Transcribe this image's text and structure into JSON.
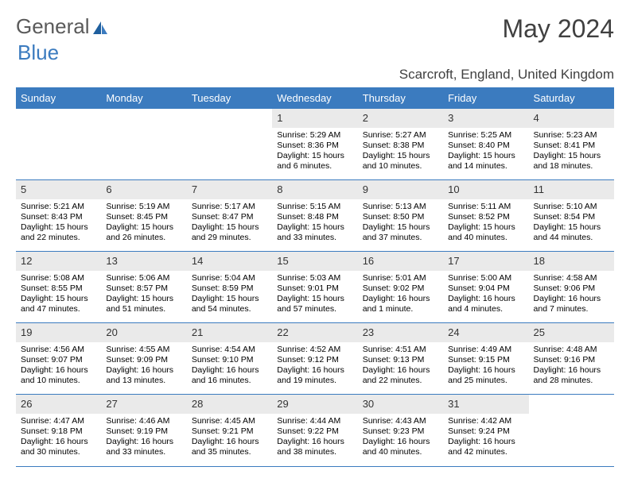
{
  "logo": {
    "text1": "General",
    "text2": "Blue"
  },
  "title": "May 2024",
  "subtitle": "Scarcroft, England, United Kingdom",
  "brand_color": "#3b7bbf",
  "header_bg": "#3b7bbf",
  "header_text_color": "#ffffff",
  "daynum_bg": "#eaeaea",
  "day_headers": [
    "Sunday",
    "Monday",
    "Tuesday",
    "Wednesday",
    "Thursday",
    "Friday",
    "Saturday"
  ],
  "weeks": [
    [
      null,
      null,
      null,
      {
        "n": "1",
        "sr": "5:29 AM",
        "ss": "8:36 PM",
        "dl": "15 hours and 6 minutes."
      },
      {
        "n": "2",
        "sr": "5:27 AM",
        "ss": "8:38 PM",
        "dl": "15 hours and 10 minutes."
      },
      {
        "n": "3",
        "sr": "5:25 AM",
        "ss": "8:40 PM",
        "dl": "15 hours and 14 minutes."
      },
      {
        "n": "4",
        "sr": "5:23 AM",
        "ss": "8:41 PM",
        "dl": "15 hours and 18 minutes."
      }
    ],
    [
      {
        "n": "5",
        "sr": "5:21 AM",
        "ss": "8:43 PM",
        "dl": "15 hours and 22 minutes."
      },
      {
        "n": "6",
        "sr": "5:19 AM",
        "ss": "8:45 PM",
        "dl": "15 hours and 26 minutes."
      },
      {
        "n": "7",
        "sr": "5:17 AM",
        "ss": "8:47 PM",
        "dl": "15 hours and 29 minutes."
      },
      {
        "n": "8",
        "sr": "5:15 AM",
        "ss": "8:48 PM",
        "dl": "15 hours and 33 minutes."
      },
      {
        "n": "9",
        "sr": "5:13 AM",
        "ss": "8:50 PM",
        "dl": "15 hours and 37 minutes."
      },
      {
        "n": "10",
        "sr": "5:11 AM",
        "ss": "8:52 PM",
        "dl": "15 hours and 40 minutes."
      },
      {
        "n": "11",
        "sr": "5:10 AM",
        "ss": "8:54 PM",
        "dl": "15 hours and 44 minutes."
      }
    ],
    [
      {
        "n": "12",
        "sr": "5:08 AM",
        "ss": "8:55 PM",
        "dl": "15 hours and 47 minutes."
      },
      {
        "n": "13",
        "sr": "5:06 AM",
        "ss": "8:57 PM",
        "dl": "15 hours and 51 minutes."
      },
      {
        "n": "14",
        "sr": "5:04 AM",
        "ss": "8:59 PM",
        "dl": "15 hours and 54 minutes."
      },
      {
        "n": "15",
        "sr": "5:03 AM",
        "ss": "9:01 PM",
        "dl": "15 hours and 57 minutes."
      },
      {
        "n": "16",
        "sr": "5:01 AM",
        "ss": "9:02 PM",
        "dl": "16 hours and 1 minute."
      },
      {
        "n": "17",
        "sr": "5:00 AM",
        "ss": "9:04 PM",
        "dl": "16 hours and 4 minutes."
      },
      {
        "n": "18",
        "sr": "4:58 AM",
        "ss": "9:06 PM",
        "dl": "16 hours and 7 minutes."
      }
    ],
    [
      {
        "n": "19",
        "sr": "4:56 AM",
        "ss": "9:07 PM",
        "dl": "16 hours and 10 minutes."
      },
      {
        "n": "20",
        "sr": "4:55 AM",
        "ss": "9:09 PM",
        "dl": "16 hours and 13 minutes."
      },
      {
        "n": "21",
        "sr": "4:54 AM",
        "ss": "9:10 PM",
        "dl": "16 hours and 16 minutes."
      },
      {
        "n": "22",
        "sr": "4:52 AM",
        "ss": "9:12 PM",
        "dl": "16 hours and 19 minutes."
      },
      {
        "n": "23",
        "sr": "4:51 AM",
        "ss": "9:13 PM",
        "dl": "16 hours and 22 minutes."
      },
      {
        "n": "24",
        "sr": "4:49 AM",
        "ss": "9:15 PM",
        "dl": "16 hours and 25 minutes."
      },
      {
        "n": "25",
        "sr": "4:48 AM",
        "ss": "9:16 PM",
        "dl": "16 hours and 28 minutes."
      }
    ],
    [
      {
        "n": "26",
        "sr": "4:47 AM",
        "ss": "9:18 PM",
        "dl": "16 hours and 30 minutes."
      },
      {
        "n": "27",
        "sr": "4:46 AM",
        "ss": "9:19 PM",
        "dl": "16 hours and 33 minutes."
      },
      {
        "n": "28",
        "sr": "4:45 AM",
        "ss": "9:21 PM",
        "dl": "16 hours and 35 minutes."
      },
      {
        "n": "29",
        "sr": "4:44 AM",
        "ss": "9:22 PM",
        "dl": "16 hours and 38 minutes."
      },
      {
        "n": "30",
        "sr": "4:43 AM",
        "ss": "9:23 PM",
        "dl": "16 hours and 40 minutes."
      },
      {
        "n": "31",
        "sr": "4:42 AM",
        "ss": "9:24 PM",
        "dl": "16 hours and 42 minutes."
      },
      null
    ]
  ],
  "labels": {
    "sunrise": "Sunrise:",
    "sunset": "Sunset:",
    "daylight": "Daylight:"
  }
}
